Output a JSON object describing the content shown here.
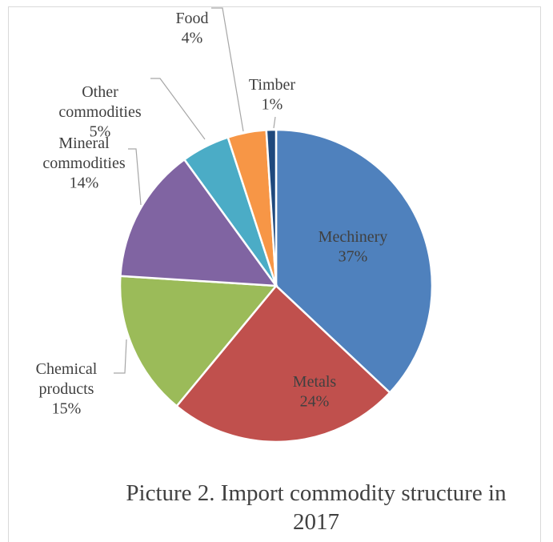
{
  "chart_data": {
    "type": "pie",
    "title": "Picture 2. Import commodity structure in 2017",
    "categories": [
      "Mechinery",
      "Metals",
      "Chemical products",
      "Mineral commodities",
      "Other commodities",
      "Food",
      "Timber"
    ],
    "values": [
      37,
      24,
      15,
      14,
      5,
      4,
      1
    ],
    "value_labels": [
      "37%",
      "24%",
      "15%",
      "14%",
      "5%",
      "4%",
      "1%"
    ],
    "colors": [
      "#4f81bd",
      "#c0504d",
      "#9bbb59",
      "#8064a2",
      "#4bacc6",
      "#f79646",
      "#1f497d"
    ]
  }
}
